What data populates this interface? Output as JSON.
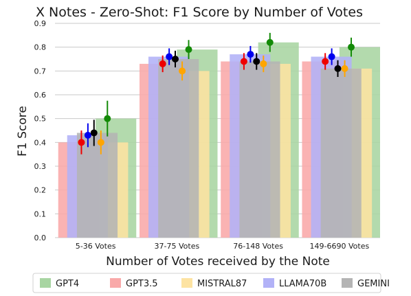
{
  "chart_data": {
    "type": "bar",
    "title": "X Notes - Zero-Shot: F1 Score by Number of Votes",
    "xlabel": "Number of Votes received by the Note",
    "ylabel": "F1 Score",
    "ylim": [
      0,
      0.9
    ],
    "yticks": [
      "0.0",
      "0.1",
      "0.2",
      "0.3",
      "0.4",
      "0.5",
      "0.6",
      "0.7",
      "0.8",
      "0.9"
    ],
    "grid": true,
    "legend_position": "bottom",
    "categories": [
      "5-36 Votes",
      "37-75 Votes",
      "76-148 Votes",
      "149-6690 Votes"
    ],
    "series": [
      {
        "name": "GPT4",
        "bar_color": "#a8d5a2",
        "point_color": "#138a07",
        "values": [
          0.5,
          0.79,
          0.82,
          0.8
        ],
        "errors": [
          0.075,
          0.04,
          0.04,
          0.04
        ]
      },
      {
        "name": "GPT3.5",
        "bar_color": "#f9a9a9",
        "point_color": "#ee0000",
        "values": [
          0.4,
          0.73,
          0.74,
          0.74
        ],
        "errors": [
          0.05,
          0.035,
          0.035,
          0.035
        ]
      },
      {
        "name": "MISTRAL87",
        "bar_color": "#fde3a2",
        "point_color": "#ffa500",
        "values": [
          0.4,
          0.7,
          0.73,
          0.71
        ],
        "errors": [
          0.05,
          0.04,
          0.035,
          0.035
        ]
      },
      {
        "name": "LLAMA70B",
        "bar_color": "#b2b2f7",
        "point_color": "#0000ee",
        "values": [
          0.43,
          0.76,
          0.77,
          0.76
        ],
        "errors": [
          0.05,
          0.035,
          0.035,
          0.035
        ]
      },
      {
        "name": "GEMINI",
        "bar_color": "#b4b4b4",
        "point_color": "#000000",
        "values": [
          0.44,
          0.75,
          0.74,
          0.71
        ],
        "errors": [
          0.055,
          0.035,
          0.035,
          0.035
        ]
      }
    ]
  }
}
